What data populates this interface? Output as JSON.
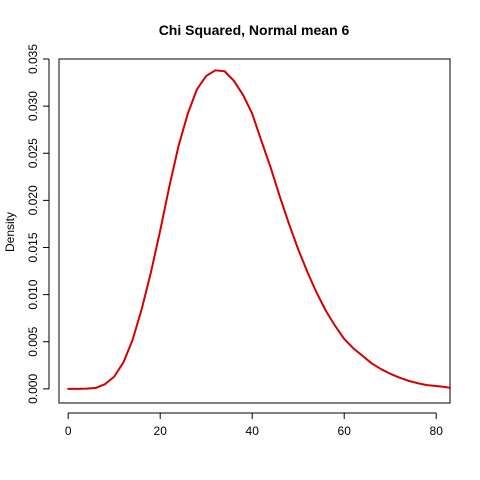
{
  "chart_data": {
    "type": "line",
    "title": "Chi Squared, Normal mean 6",
    "xlabel": "",
    "ylabel": "Density",
    "xlim": [
      -2,
      83
    ],
    "ylim": [
      -0.0015,
      0.035
    ],
    "xticks": [
      0,
      20,
      40,
      60,
      80
    ],
    "xtick_labels": [
      "0",
      "20",
      "40",
      "60",
      "80"
    ],
    "yticks": [
      0.0,
      0.005,
      0.01,
      0.015,
      0.02,
      0.025,
      0.03,
      0.035
    ],
    "ytick_labels": [
      "0.000",
      "0.005",
      "0.010",
      "0.015",
      "0.020",
      "0.025",
      "0.030",
      "0.035"
    ],
    "grid": false,
    "series": [
      {
        "color": "#d40000",
        "x": [
          0,
          2,
          4,
          6,
          8,
          10,
          12,
          14,
          16,
          18,
          20,
          22,
          24,
          26,
          28,
          30,
          32,
          34,
          36,
          38,
          40,
          42,
          44,
          46,
          48,
          50,
          52,
          54,
          56,
          58,
          60,
          62,
          64,
          66,
          68,
          70,
          72,
          74,
          76,
          78,
          80,
          82,
          83
        ],
        "y": [
          0.0,
          0.0,
          2e-05,
          0.0001,
          0.0005,
          0.0013,
          0.0028,
          0.0052,
          0.0085,
          0.0124,
          0.0168,
          0.0215,
          0.0258,
          0.0292,
          0.0318,
          0.0332,
          0.0338,
          0.0337,
          0.0327,
          0.0312,
          0.0292,
          0.0263,
          0.0235,
          0.0204,
          0.0175,
          0.0148,
          0.0124,
          0.0102,
          0.0083,
          0.0067,
          0.0053,
          0.0043,
          0.0035,
          0.0027,
          0.0021,
          0.0016,
          0.0012,
          0.00085,
          0.0006,
          0.0004,
          0.0003,
          0.0002,
          0.0001
        ]
      }
    ]
  }
}
